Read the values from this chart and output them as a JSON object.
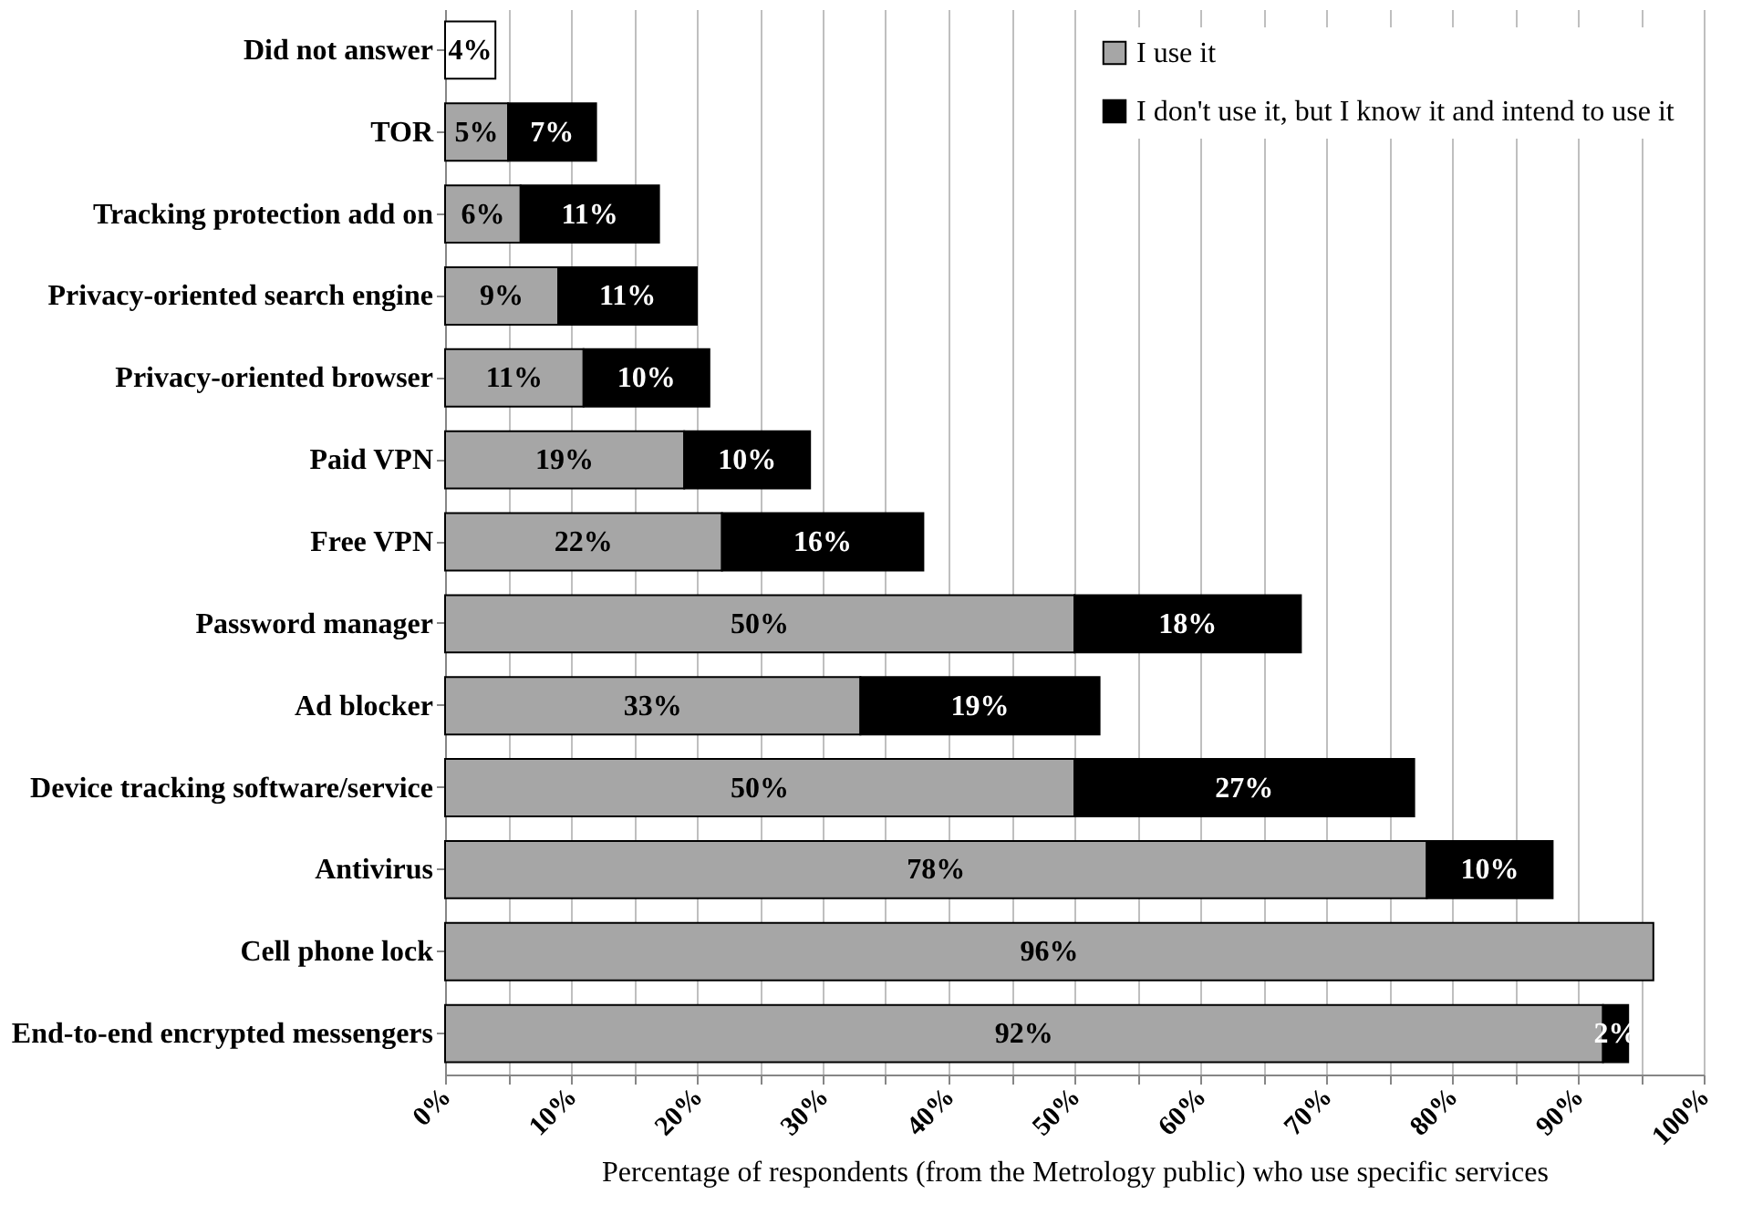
{
  "chart_data": {
    "type": "bar",
    "orientation": "horizontal",
    "stacked": true,
    "xlabel": "Percentage of respondents (from the Metrology  public)  who use specific services",
    "categories": [
      "Did not answer",
      "TOR",
      "Tracking protection add on",
      "Privacy-oriented search engine",
      "Privacy-oriented browser",
      "Paid VPN",
      "Free VPN",
      "Password manager",
      "Ad blocker",
      "Device tracking software/service",
      "Antivirus",
      "Cell phone lock",
      "End-to-end encrypted messengers"
    ],
    "series": [
      {
        "name": "I use it",
        "color": "#a6a6a6",
        "values": [
          null,
          5,
          6,
          9,
          11,
          19,
          22,
          50,
          33,
          50,
          78,
          96,
          92
        ],
        "value_labels": [
          null,
          "5%",
          "6%",
          "9%",
          "11%",
          "19%",
          "22%",
          "50%",
          "33%",
          "50%",
          "78%",
          "96%",
          "92%"
        ]
      },
      {
        "name": "I don't use it, but I know it and intend to use it",
        "color": "#000000",
        "values": [
          null,
          7,
          11,
          11,
          10,
          10,
          16,
          18,
          19,
          27,
          10,
          null,
          2
        ],
        "value_labels": [
          null,
          "7%",
          "11%",
          "11%",
          "10%",
          "10%",
          "16%",
          "18%",
          "19%",
          "27%",
          "10%",
          null,
          "2%"
        ]
      },
      {
        "color": "#ffffff",
        "values": [
          4,
          null,
          null,
          null,
          null,
          null,
          null,
          null,
          null,
          null,
          null,
          null,
          null
        ],
        "value_labels": [
          "4%",
          null,
          null,
          null,
          null,
          null,
          null,
          null,
          null,
          null,
          null,
          null,
          null
        ]
      }
    ],
    "xlim": [
      0,
      100
    ],
    "xticks": [
      {
        "value": 0,
        "label": "0%"
      },
      {
        "value": 5,
        "label": null
      },
      {
        "value": 10,
        "label": "10%"
      },
      {
        "value": 15,
        "label": null
      },
      {
        "value": 20,
        "label": "20%"
      },
      {
        "value": 25,
        "label": null
      },
      {
        "value": 30,
        "label": "30%"
      },
      {
        "value": 35,
        "label": null
      },
      {
        "value": 40,
        "label": "40%"
      },
      {
        "value": 45,
        "label": null
      },
      {
        "value": 50,
        "label": "50%"
      },
      {
        "value": 55,
        "label": null
      },
      {
        "value": 60,
        "label": "60%"
      },
      {
        "value": 65,
        "label": null
      },
      {
        "value": 70,
        "label": "70%"
      },
      {
        "value": 75,
        "label": null
      },
      {
        "value": 80,
        "label": "80%"
      },
      {
        "value": 85,
        "label": null
      },
      {
        "value": 90,
        "label": "90%"
      },
      {
        "value": 95,
        "label": null
      },
      {
        "value": 100,
        "label": "100%"
      }
    ],
    "grid": "x",
    "legend": "top right"
  }
}
